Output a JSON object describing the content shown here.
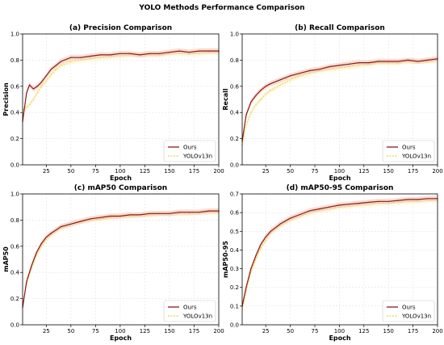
{
  "figure": {
    "title": "YOLO Methods Performance Comparison"
  },
  "colors": {
    "ours": "#8b1a1a",
    "ours_band": "#f4c7b8",
    "baseline": "#e8d24a",
    "baseline_band": "#fbf3c6",
    "grid": "#e2e2e2"
  },
  "chart_data": [
    {
      "type": "line",
      "title": "(a) Precision Comparison",
      "xlabel": "Epoch",
      "ylabel": "Precision",
      "xlim": [
        1,
        200
      ],
      "ylim": [
        0,
        1.0
      ],
      "xticks": [
        25,
        50,
        75,
        100,
        125,
        150,
        175,
        200
      ],
      "yticks": [
        0.0,
        0.2,
        0.4,
        0.6,
        0.8,
        1.0
      ],
      "ytick_labels": [
        "0.0",
        "0.2",
        "0.4",
        "0.6",
        "0.8",
        "1.0"
      ],
      "grid": true,
      "legend": "lower-right",
      "series": [
        {
          "name": "Ours",
          "x": [
            1,
            5,
            8,
            12,
            16,
            20,
            25,
            30,
            35,
            40,
            50,
            60,
            70,
            80,
            90,
            100,
            110,
            120,
            130,
            140,
            150,
            160,
            170,
            180,
            190,
            200
          ],
          "values": [
            0.33,
            0.55,
            0.61,
            0.58,
            0.6,
            0.63,
            0.68,
            0.73,
            0.76,
            0.79,
            0.82,
            0.82,
            0.83,
            0.84,
            0.84,
            0.85,
            0.85,
            0.84,
            0.85,
            0.85,
            0.86,
            0.87,
            0.86,
            0.87,
            0.87,
            0.87
          ]
        },
        {
          "name": "YOLOv13n",
          "x": [
            1,
            5,
            8,
            12,
            16,
            20,
            25,
            30,
            35,
            40,
            50,
            60,
            70,
            80,
            90,
            100,
            110,
            120,
            130,
            140,
            150,
            160,
            170,
            180,
            190,
            200
          ],
          "values": [
            0.42,
            0.44,
            0.46,
            0.5,
            0.55,
            0.6,
            0.64,
            0.69,
            0.73,
            0.76,
            0.79,
            0.8,
            0.81,
            0.82,
            0.83,
            0.83,
            0.84,
            0.84,
            0.84,
            0.84,
            0.85,
            0.85,
            0.85,
            0.85,
            0.86,
            0.86
          ]
        }
      ]
    },
    {
      "type": "line",
      "title": "(b) Recall Comparison",
      "xlabel": "Epoch",
      "ylabel": "Recall",
      "xlim": [
        1,
        200
      ],
      "ylim": [
        0,
        1.0
      ],
      "xticks": [
        25,
        50,
        75,
        100,
        125,
        150,
        175,
        200
      ],
      "yticks": [
        0.0,
        0.2,
        0.4,
        0.6,
        0.8,
        1.0
      ],
      "ytick_labels": [
        "0.0",
        "0.2",
        "0.4",
        "0.6",
        "0.8",
        "1.0"
      ],
      "grid": true,
      "legend": "lower-right",
      "series": [
        {
          "name": "Ours",
          "x": [
            1,
            5,
            10,
            15,
            20,
            25,
            30,
            40,
            50,
            60,
            70,
            80,
            90,
            100,
            110,
            120,
            130,
            140,
            150,
            160,
            170,
            180,
            190,
            200
          ],
          "values": [
            0.18,
            0.38,
            0.48,
            0.53,
            0.57,
            0.6,
            0.62,
            0.65,
            0.68,
            0.7,
            0.72,
            0.73,
            0.75,
            0.76,
            0.77,
            0.78,
            0.78,
            0.79,
            0.79,
            0.79,
            0.8,
            0.79,
            0.8,
            0.81
          ]
        },
        {
          "name": "YOLOv13n",
          "x": [
            1,
            5,
            10,
            15,
            20,
            25,
            30,
            40,
            50,
            60,
            70,
            80,
            90,
            100,
            110,
            120,
            130,
            140,
            150,
            160,
            170,
            180,
            190,
            200
          ],
          "values": [
            0.15,
            0.3,
            0.4,
            0.46,
            0.5,
            0.54,
            0.57,
            0.61,
            0.65,
            0.68,
            0.7,
            0.72,
            0.73,
            0.74,
            0.75,
            0.76,
            0.77,
            0.78,
            0.78,
            0.78,
            0.79,
            0.79,
            0.79,
            0.8
          ]
        }
      ]
    },
    {
      "type": "line",
      "title": "(c) mAP50 Comparison",
      "xlabel": "Epoch",
      "ylabel": "mAP50",
      "xlim": [
        1,
        200
      ],
      "ylim": [
        0,
        1.0
      ],
      "xticks": [
        25,
        50,
        75,
        100,
        125,
        150,
        175,
        200
      ],
      "yticks": [
        0.0,
        0.2,
        0.4,
        0.6,
        0.8,
        1.0
      ],
      "ytick_labels": [
        "0.0",
        "0.2",
        "0.4",
        "0.6",
        "0.8",
        "1.0"
      ],
      "grid": true,
      "legend": "lower-right",
      "series": [
        {
          "name": "Ours",
          "x": [
            1,
            5,
            10,
            15,
            20,
            25,
            30,
            40,
            50,
            60,
            70,
            80,
            90,
            100,
            110,
            120,
            130,
            140,
            150,
            160,
            170,
            180,
            190,
            200
          ],
          "values": [
            0.13,
            0.33,
            0.45,
            0.55,
            0.62,
            0.67,
            0.7,
            0.75,
            0.77,
            0.79,
            0.81,
            0.82,
            0.83,
            0.83,
            0.84,
            0.84,
            0.85,
            0.85,
            0.85,
            0.86,
            0.86,
            0.86,
            0.87,
            0.87
          ]
        },
        {
          "name": "YOLOv13n",
          "x": [
            1,
            5,
            10,
            15,
            20,
            25,
            30,
            40,
            50,
            60,
            70,
            80,
            90,
            100,
            110,
            120,
            130,
            140,
            150,
            160,
            170,
            180,
            190,
            200
          ],
          "values": [
            0.14,
            0.31,
            0.43,
            0.53,
            0.6,
            0.65,
            0.69,
            0.74,
            0.77,
            0.79,
            0.8,
            0.81,
            0.82,
            0.83,
            0.83,
            0.84,
            0.84,
            0.85,
            0.85,
            0.85,
            0.85,
            0.86,
            0.86,
            0.86
          ]
        }
      ]
    },
    {
      "type": "line",
      "title": "(d) mAP50-95 Comparison",
      "xlabel": "Epoch",
      "ylabel": "mAP50-95",
      "xlim": [
        1,
        200
      ],
      "ylim": [
        0,
        0.7
      ],
      "xticks": [
        25,
        50,
        75,
        100,
        125,
        150,
        175,
        200
      ],
      "yticks": [
        0.0,
        0.1,
        0.2,
        0.3,
        0.4,
        0.5,
        0.6,
        0.7
      ],
      "ytick_labels": [
        "0.0",
        "0.1",
        "0.2",
        "0.3",
        "0.4",
        "0.5",
        "0.6",
        "0.7"
      ],
      "grid": true,
      "legend": "lower-right",
      "series": [
        {
          "name": "Ours",
          "x": [
            1,
            5,
            10,
            15,
            20,
            25,
            30,
            40,
            50,
            60,
            70,
            80,
            90,
            100,
            110,
            120,
            130,
            140,
            150,
            160,
            170,
            180,
            190,
            200
          ],
          "values": [
            0.1,
            0.2,
            0.3,
            0.37,
            0.43,
            0.47,
            0.5,
            0.54,
            0.57,
            0.59,
            0.61,
            0.62,
            0.63,
            0.64,
            0.645,
            0.65,
            0.655,
            0.66,
            0.66,
            0.665,
            0.67,
            0.67,
            0.675,
            0.675
          ]
        },
        {
          "name": "YOLOv13n",
          "x": [
            1,
            5,
            10,
            15,
            20,
            25,
            30,
            40,
            50,
            60,
            70,
            80,
            90,
            100,
            110,
            120,
            130,
            140,
            150,
            160,
            170,
            180,
            190,
            200
          ],
          "values": [
            0.08,
            0.18,
            0.28,
            0.35,
            0.41,
            0.45,
            0.49,
            0.53,
            0.56,
            0.58,
            0.6,
            0.61,
            0.62,
            0.63,
            0.635,
            0.64,
            0.645,
            0.65,
            0.65,
            0.655,
            0.66,
            0.66,
            0.665,
            0.665
          ]
        }
      ]
    }
  ]
}
